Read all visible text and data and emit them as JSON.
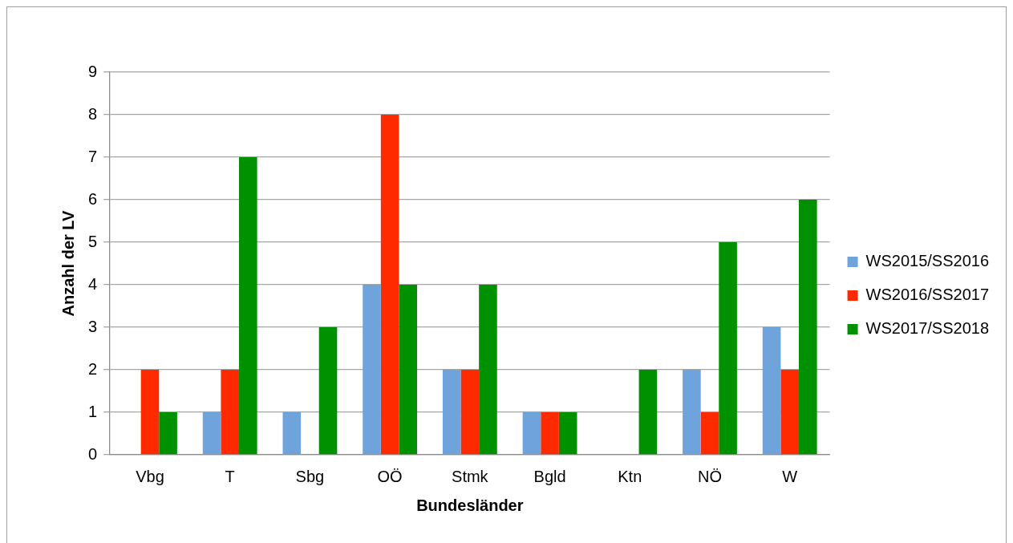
{
  "chart_data": {
    "type": "bar",
    "xlabel": "Bundesländer",
    "ylabel": "Anzahl der LV",
    "categories": [
      "Vbg",
      "T",
      "Sbg",
      "OÖ",
      "Stmk",
      "Bgld",
      "Ktn",
      "NÖ",
      "W"
    ],
    "series": [
      {
        "name": "WS2015/SS2016",
        "color": "#6fa3dc",
        "values": [
          0,
          1,
          1,
          4,
          2,
          1,
          0,
          2,
          3
        ]
      },
      {
        "name": "WS2016/SS2017",
        "color": "#ff2a00",
        "values": [
          2,
          2,
          0,
          8,
          2,
          1,
          0,
          1,
          2
        ]
      },
      {
        "name": "WS2017/SS2018",
        "color": "#009100",
        "values": [
          1,
          7,
          3,
          4,
          4,
          1,
          2,
          5,
          6
        ]
      }
    ],
    "ylim": [
      0,
      9
    ],
    "yticks": [
      0,
      1,
      2,
      3,
      4,
      5,
      6,
      7,
      8,
      9
    ],
    "grid": "y",
    "legend": "right"
  }
}
